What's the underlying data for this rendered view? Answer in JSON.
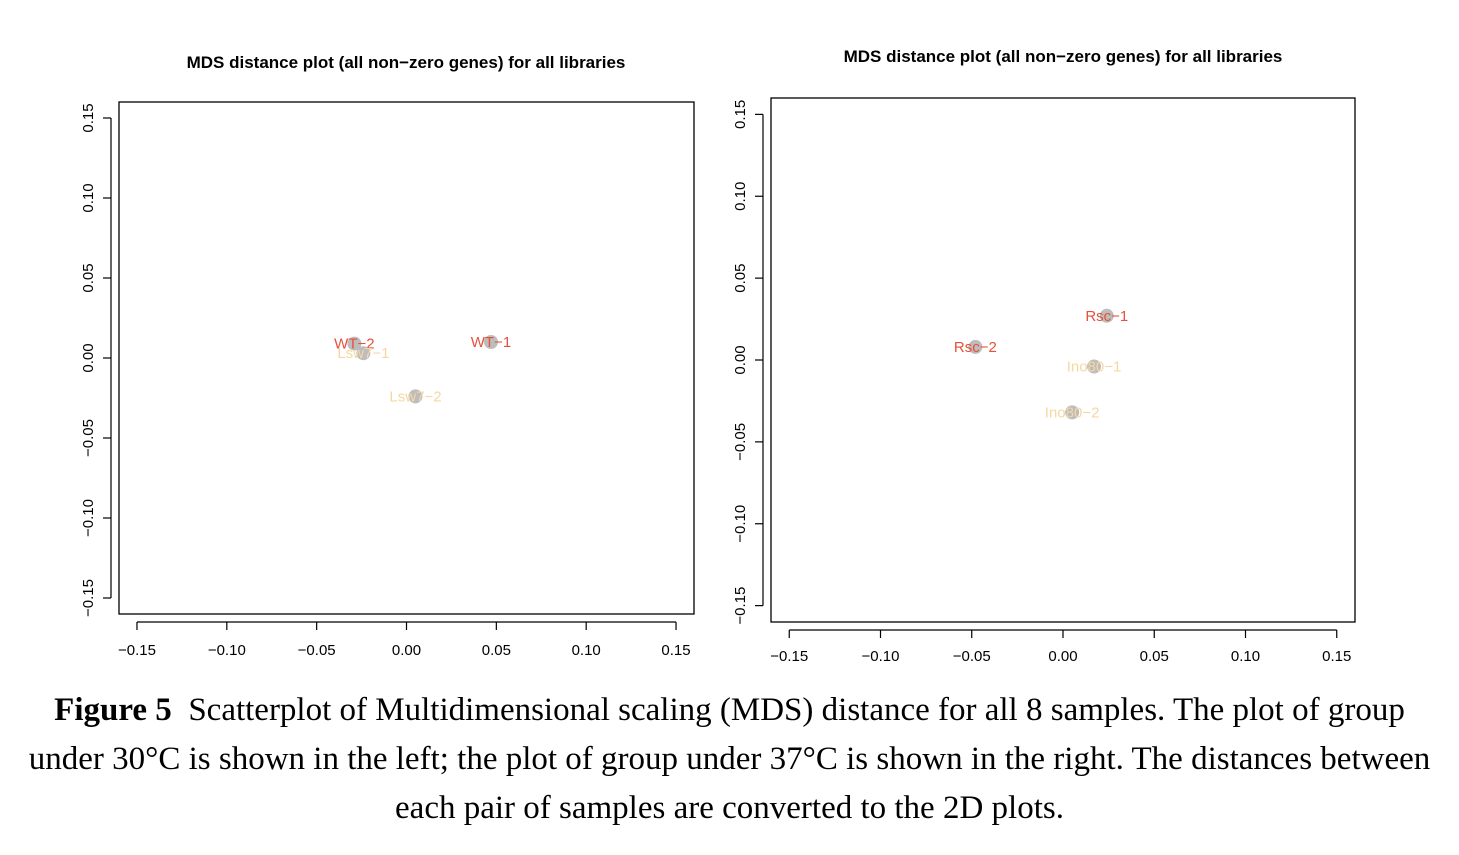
{
  "chart_data": [
    {
      "type": "scatter",
      "title": "MDS distance plot (all non−zero genes) for all libraries",
      "xlim": [
        -0.16,
        0.16
      ],
      "ylim": [
        -0.16,
        0.16
      ],
      "x_ticks": [
        -0.15,
        -0.1,
        -0.05,
        0.0,
        0.05,
        0.1,
        0.15
      ],
      "x_tick_labels": [
        "−0.15",
        "−0.10",
        "−0.05",
        "0.00",
        "0.05",
        "0.10",
        "0.15"
      ],
      "y_ticks": [
        -0.15,
        -0.1,
        -0.05,
        0.0,
        0.05,
        0.1,
        0.15
      ],
      "y_tick_labels": [
        "−0.15",
        "−0.10",
        "−0.05",
        "0.00",
        "0.05",
        "0.10",
        "0.15"
      ],
      "grid": false,
      "points": [
        {
          "label": "WT−2",
          "x": -0.029,
          "y": 0.009,
          "color": "#e8503a"
        },
        {
          "label": "WT−1",
          "x": 0.047,
          "y": 0.01,
          "color": "#e8503a"
        },
        {
          "label": "Lsw7−1",
          "x": -0.024,
          "y": 0.003,
          "color": "#f5d7a3"
        },
        {
          "label": "Lsw7−2",
          "x": 0.005,
          "y": -0.024,
          "color": "#f5d7a3"
        }
      ]
    },
    {
      "type": "scatter",
      "title": "MDS distance plot (all non−zero genes) for all libraries",
      "xlim": [
        -0.16,
        0.16
      ],
      "ylim": [
        -0.16,
        0.16
      ],
      "x_ticks": [
        -0.15,
        -0.1,
        -0.05,
        0.0,
        0.05,
        0.1,
        0.15
      ],
      "x_tick_labels": [
        "−0.15",
        "−0.10",
        "−0.05",
        "0.00",
        "0.05",
        "0.10",
        "0.15"
      ],
      "y_ticks": [
        -0.15,
        -0.1,
        -0.05,
        0.0,
        0.05,
        0.1,
        0.15
      ],
      "y_tick_labels": [
        "−0.15",
        "−0.10",
        "−0.05",
        "0.00",
        "0.05",
        "0.10",
        "0.15"
      ],
      "grid": false,
      "points": [
        {
          "label": "Rsc−1",
          "x": 0.024,
          "y": 0.027,
          "color": "#e8503a"
        },
        {
          "label": "Rsc−2",
          "x": -0.048,
          "y": 0.008,
          "color": "#e8503a"
        },
        {
          "label": "Ino80−1",
          "x": 0.017,
          "y": -0.004,
          "color": "#f5d7a3"
        },
        {
          "label": "Ino80−2",
          "x": 0.005,
          "y": -0.032,
          "color": "#f5d7a3"
        }
      ]
    }
  ],
  "caption": {
    "label": "Figure 5",
    "text": "Scatterplot of Multidimensional scaling (MDS) distance for all 8 samples. The plot of group under 30°C is shown in the left; the  plot of group under 37°C is shown in the right. The distances between each pair of samples are converted to the 2D plots."
  },
  "marker_color": "#bdbdbd"
}
